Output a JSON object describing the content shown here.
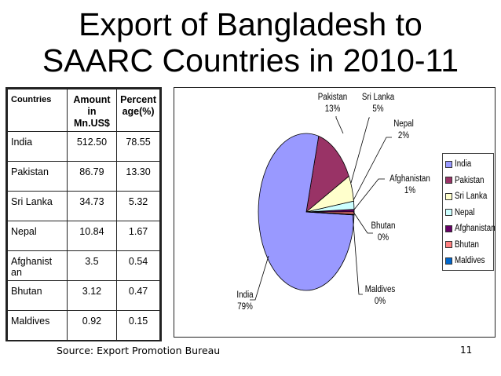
{
  "slide": {
    "title_line1": "Export of Bangladesh to",
    "title_line2": "SAARC Countries in 2010-11",
    "source": "Source: Export Promotion Bureau",
    "page_number": "11"
  },
  "table": {
    "headers": [
      "Countries",
      "Amount in Mn.US$",
      "Percent age(%)"
    ],
    "header_lines": {
      "amount": [
        "Amount",
        "in",
        "Mn.US$"
      ],
      "percent": [
        "Percent",
        "age(%)"
      ]
    },
    "rows": [
      {
        "country": "India",
        "amount": "512.50",
        "percent": "78.55"
      },
      {
        "country": "Pakistan",
        "amount": "86.79",
        "percent": "13.30"
      },
      {
        "country": "Sri Lanka",
        "amount": "34.73",
        "percent": "5.32"
      },
      {
        "country": "Nepal",
        "amount": "10.84",
        "percent": "1.67"
      },
      {
        "country": "Afghanist an",
        "amount": "3.5",
        "percent": "0.54"
      },
      {
        "country": "Bhutan",
        "amount": "3.12",
        "percent": "0.47"
      },
      {
        "country": "Maldives",
        "amount": "0.92",
        "percent": "0.15"
      }
    ]
  },
  "chart_data": {
    "type": "pie",
    "title": "Export of Bangladesh to SAARC Countries in 2010-11",
    "categories": [
      "India",
      "Pakistan",
      "Sri Lanka",
      "Nepal",
      "Afghanistan",
      "Bhutan",
      "Maldives"
    ],
    "values": [
      78.55,
      13.3,
      5.32,
      1.67,
      0.54,
      0.47,
      0.15
    ],
    "amounts_mn_usd": [
      512.5,
      86.79,
      34.73,
      10.84,
      3.5,
      3.12,
      0.92
    ],
    "data_labels": [
      {
        "name": "India",
        "pct": "79%"
      },
      {
        "name": "Pakistan",
        "pct": "13%"
      },
      {
        "name": "Sri Lanka",
        "pct": "5%"
      },
      {
        "name": "Nepal",
        "pct": "2%"
      },
      {
        "name": "Afghanistan",
        "pct": "1%"
      },
      {
        "name": "Bhutan",
        "pct": "0%"
      },
      {
        "name": "Maldives",
        "pct": "0%"
      }
    ],
    "colors": [
      "#9999ff",
      "#993366",
      "#ffffcc",
      "#ccffff",
      "#660066",
      "#ff8080",
      "#0066cc"
    ],
    "legend_position": "right",
    "grid": false
  },
  "legend": {
    "items": [
      {
        "label": "India",
        "color": "#9999ff"
      },
      {
        "label": "Pakistan",
        "color": "#993366"
      },
      {
        "label": "Sri Lanka",
        "color": "#ffffcc"
      },
      {
        "label": "Nepal",
        "color": "#ccffff"
      },
      {
        "label": "Afghanistan",
        "color": "#660066"
      },
      {
        "label": "Bhutan",
        "color": "#ff8080"
      },
      {
        "label": "Maldives",
        "color": "#0066cc"
      }
    ]
  }
}
